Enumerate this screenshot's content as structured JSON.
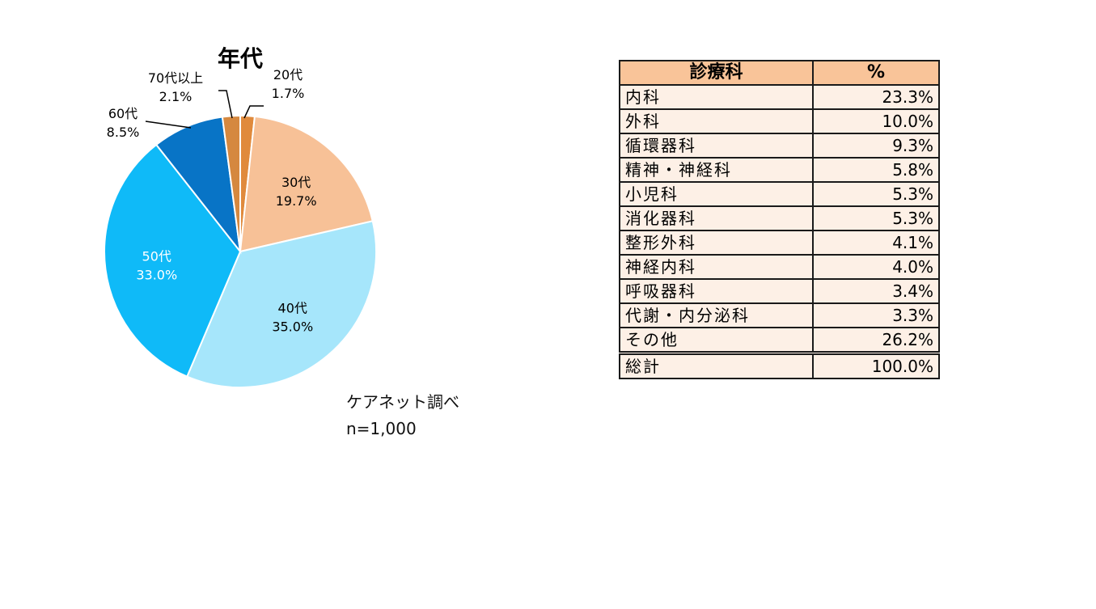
{
  "chart_data": {
    "type": "pie",
    "title": "年代",
    "slices": [
      {
        "label": "20代",
        "value": 1.7,
        "value_label": "1.7%",
        "color": "#e08a3c"
      },
      {
        "label": "30代",
        "value": 19.7,
        "value_label": "19.7%",
        "color": "#f7c197"
      },
      {
        "label": "40代",
        "value": 35.0,
        "value_label": "35.0%",
        "color": "#a6e6fb"
      },
      {
        "label": "50代",
        "value": 33.0,
        "value_label": "33.0%",
        "color": "#0fbaf8"
      },
      {
        "label": "60代",
        "value": 8.5,
        "value_label": "8.5%",
        "color": "#0874c6"
      },
      {
        "label": "70代以上",
        "value": 2.1,
        "value_label": "2.1%",
        "color": "#d5883f"
      }
    ]
  },
  "source": {
    "line1": "ケアネット調べ",
    "line2": "n=1,000"
  },
  "table": {
    "headers": [
      "診療科",
      "%"
    ],
    "rows": [
      {
        "name": "内科",
        "value": "23.3%"
      },
      {
        "name": "外科",
        "value": "10.0%"
      },
      {
        "name": "循環器科",
        "value": "9.3%"
      },
      {
        "name": "精神・神経科",
        "value": "5.8%"
      },
      {
        "name": "小児科",
        "value": "5.3%"
      },
      {
        "name": "消化器科",
        "value": "5.3%"
      },
      {
        "name": "整形外科",
        "value": "4.1%"
      },
      {
        "name": "神経内科",
        "value": "4.0%"
      },
      {
        "name": "呼吸器科",
        "value": "3.4%"
      },
      {
        "name": "代謝・内分泌科",
        "value": "3.3%"
      },
      {
        "name": "その他",
        "value": "26.2%"
      }
    ],
    "total": {
      "name": "総計",
      "value": "100.0%"
    }
  }
}
